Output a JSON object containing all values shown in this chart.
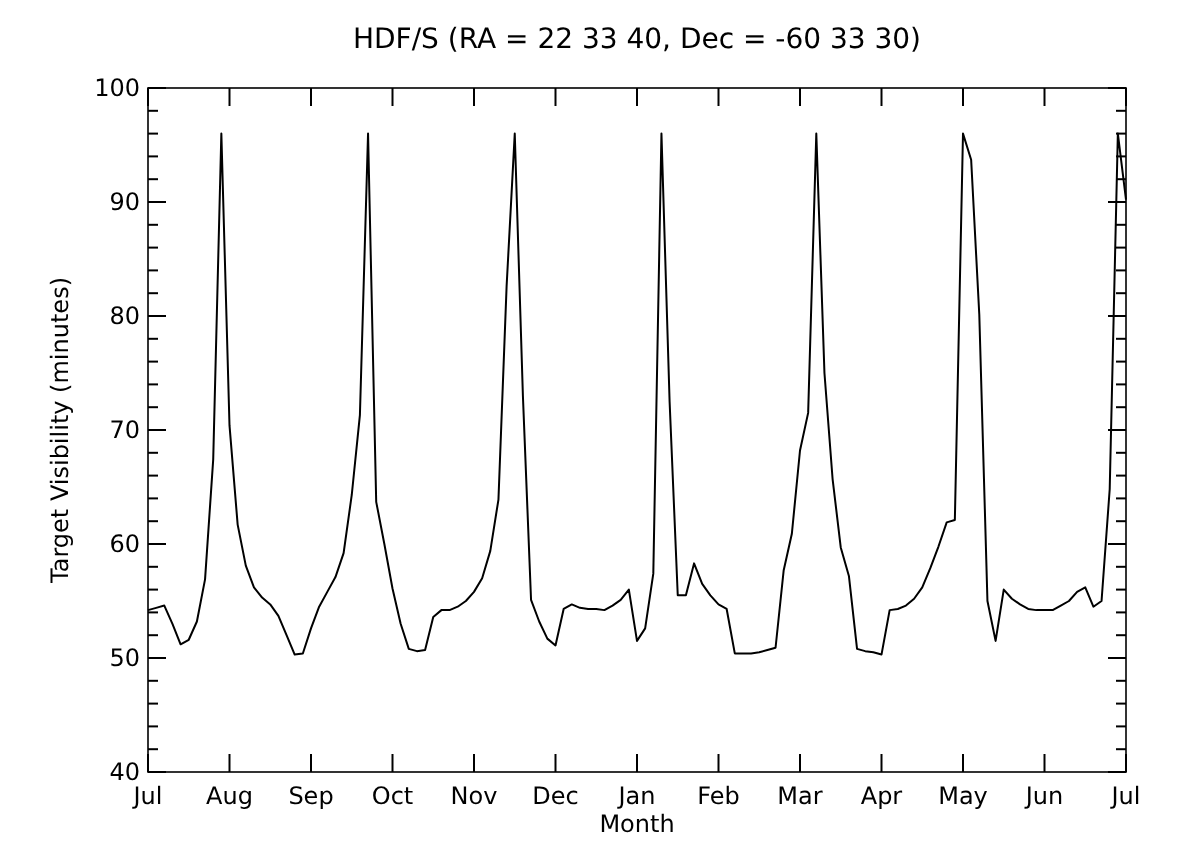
{
  "chart_data": {
    "type": "line",
    "title": "HDF/S (RA = 22 33 40, Dec = -60 33 30)",
    "xlabel": "Month",
    "ylabel": "Target Visibility (minutes)",
    "categories": [
      "Jul",
      null,
      null,
      null,
      null,
      null,
      null,
      null,
      null,
      null,
      "Aug",
      null,
      null,
      null,
      null,
      null,
      null,
      null,
      null,
      null,
      "Sep",
      null,
      null,
      null,
      null,
      null,
      null,
      null,
      null,
      null,
      "Oct",
      null,
      null,
      null,
      null,
      null,
      null,
      null,
      null,
      null,
      "Nov",
      null,
      null,
      null,
      null,
      null,
      null,
      null,
      null,
      null,
      "Dec",
      null,
      null,
      null,
      null,
      null,
      null,
      null,
      null,
      null,
      "Jan",
      null,
      null,
      null,
      null,
      null,
      null,
      null,
      null,
      null,
      "Feb",
      null,
      null,
      null,
      null,
      null,
      null,
      null,
      null,
      null,
      "Mar",
      null,
      null,
      null,
      null,
      null,
      null,
      null,
      null,
      null,
      "Apr",
      null,
      null,
      null,
      null,
      null,
      null,
      null,
      null,
      null,
      "May",
      null,
      null,
      null,
      null,
      null,
      null,
      null,
      null,
      null,
      "Jun",
      null,
      null,
      null,
      null,
      null,
      null,
      null,
      null,
      null,
      "Jul"
    ],
    "ylim": [
      40,
      100
    ],
    "yticks": [
      40,
      {
        "value": 42,
        "label": null
      },
      {
        "value": 44,
        "label": null
      },
      {
        "value": 46,
        "label": null
      },
      {
        "value": 48,
        "label": null
      },
      50,
      {
        "value": 52,
        "label": null
      },
      {
        "value": 54,
        "label": null
      },
      {
        "value": 56,
        "label": null
      },
      {
        "value": 58,
        "label": null
      },
      60,
      {
        "value": 62,
        "label": null
      },
      {
        "value": 64,
        "label": null
      },
      {
        "value": 66,
        "label": null
      },
      {
        "value": 68,
        "label": null
      },
      70,
      {
        "value": 72,
        "label": null
      },
      {
        "value": 74,
        "label": null
      },
      {
        "value": 76,
        "label": null
      },
      {
        "value": 78,
        "label": null
      },
      80,
      {
        "value": 82,
        "label": null
      },
      {
        "value": 84,
        "label": null
      },
      {
        "value": 86,
        "label": null
      },
      {
        "value": 88,
        "label": null
      },
      90,
      {
        "value": 92,
        "label": null
      },
      {
        "value": 94,
        "label": null
      },
      {
        "value": 96,
        "label": null
      },
      {
        "value": 98,
        "label": null
      },
      100
    ],
    "grid": false,
    "marker": "none",
    "line_style": "solid",
    "series": [
      {
        "color": "#000000",
        "values": [
          54.2,
          54.4,
          54.6,
          53.0,
          51.2,
          51.6,
          53.2,
          56.9,
          67.4,
          96,
          70.4,
          61.7,
          58.1,
          56.2,
          55.3,
          54.7,
          53.7,
          52.0,
          50.3,
          50.4,
          52.6,
          54.5,
          55.8,
          57.1,
          59.2,
          64.3,
          71.3,
          96,
          63.7,
          60.0,
          56.1,
          53.0,
          50.8,
          50.6,
          50.7,
          53.6,
          54.2,
          54.2,
          54.5,
          55.0,
          55.8,
          57.0,
          59.4,
          63.9,
          82.6,
          96,
          73.0,
          55.1,
          53.2,
          51.7,
          51.1,
          54.3,
          54.7,
          54.4,
          54.3,
          54.3,
          54.2,
          54.6,
          55.1,
          56.0,
          51.5,
          52.6,
          57.4,
          96,
          72.5,
          55.5,
          55.5,
          58.3,
          56.5,
          55.5,
          54.7,
          54.3,
          50.4,
          50.4,
          50.4,
          50.5,
          50.7,
          50.9,
          57.7,
          60.9,
          68.2,
          71.5,
          96,
          75.0,
          65.7,
          59.7,
          57.2,
          50.8,
          50.6,
          50.5,
          50.3,
          54.2,
          54.3,
          54.6,
          55.2,
          56.2,
          57.9,
          59.8,
          61.9,
          62.1,
          96,
          93.7,
          80.1,
          55.0,
          51.5,
          56.0,
          55.2,
          54.7,
          54.3,
          54.2,
          54.2,
          54.2,
          54.6,
          55.0,
          55.8,
          56.2,
          54.5,
          55.0,
          64.8,
          96,
          90.2
        ]
      }
    ]
  }
}
